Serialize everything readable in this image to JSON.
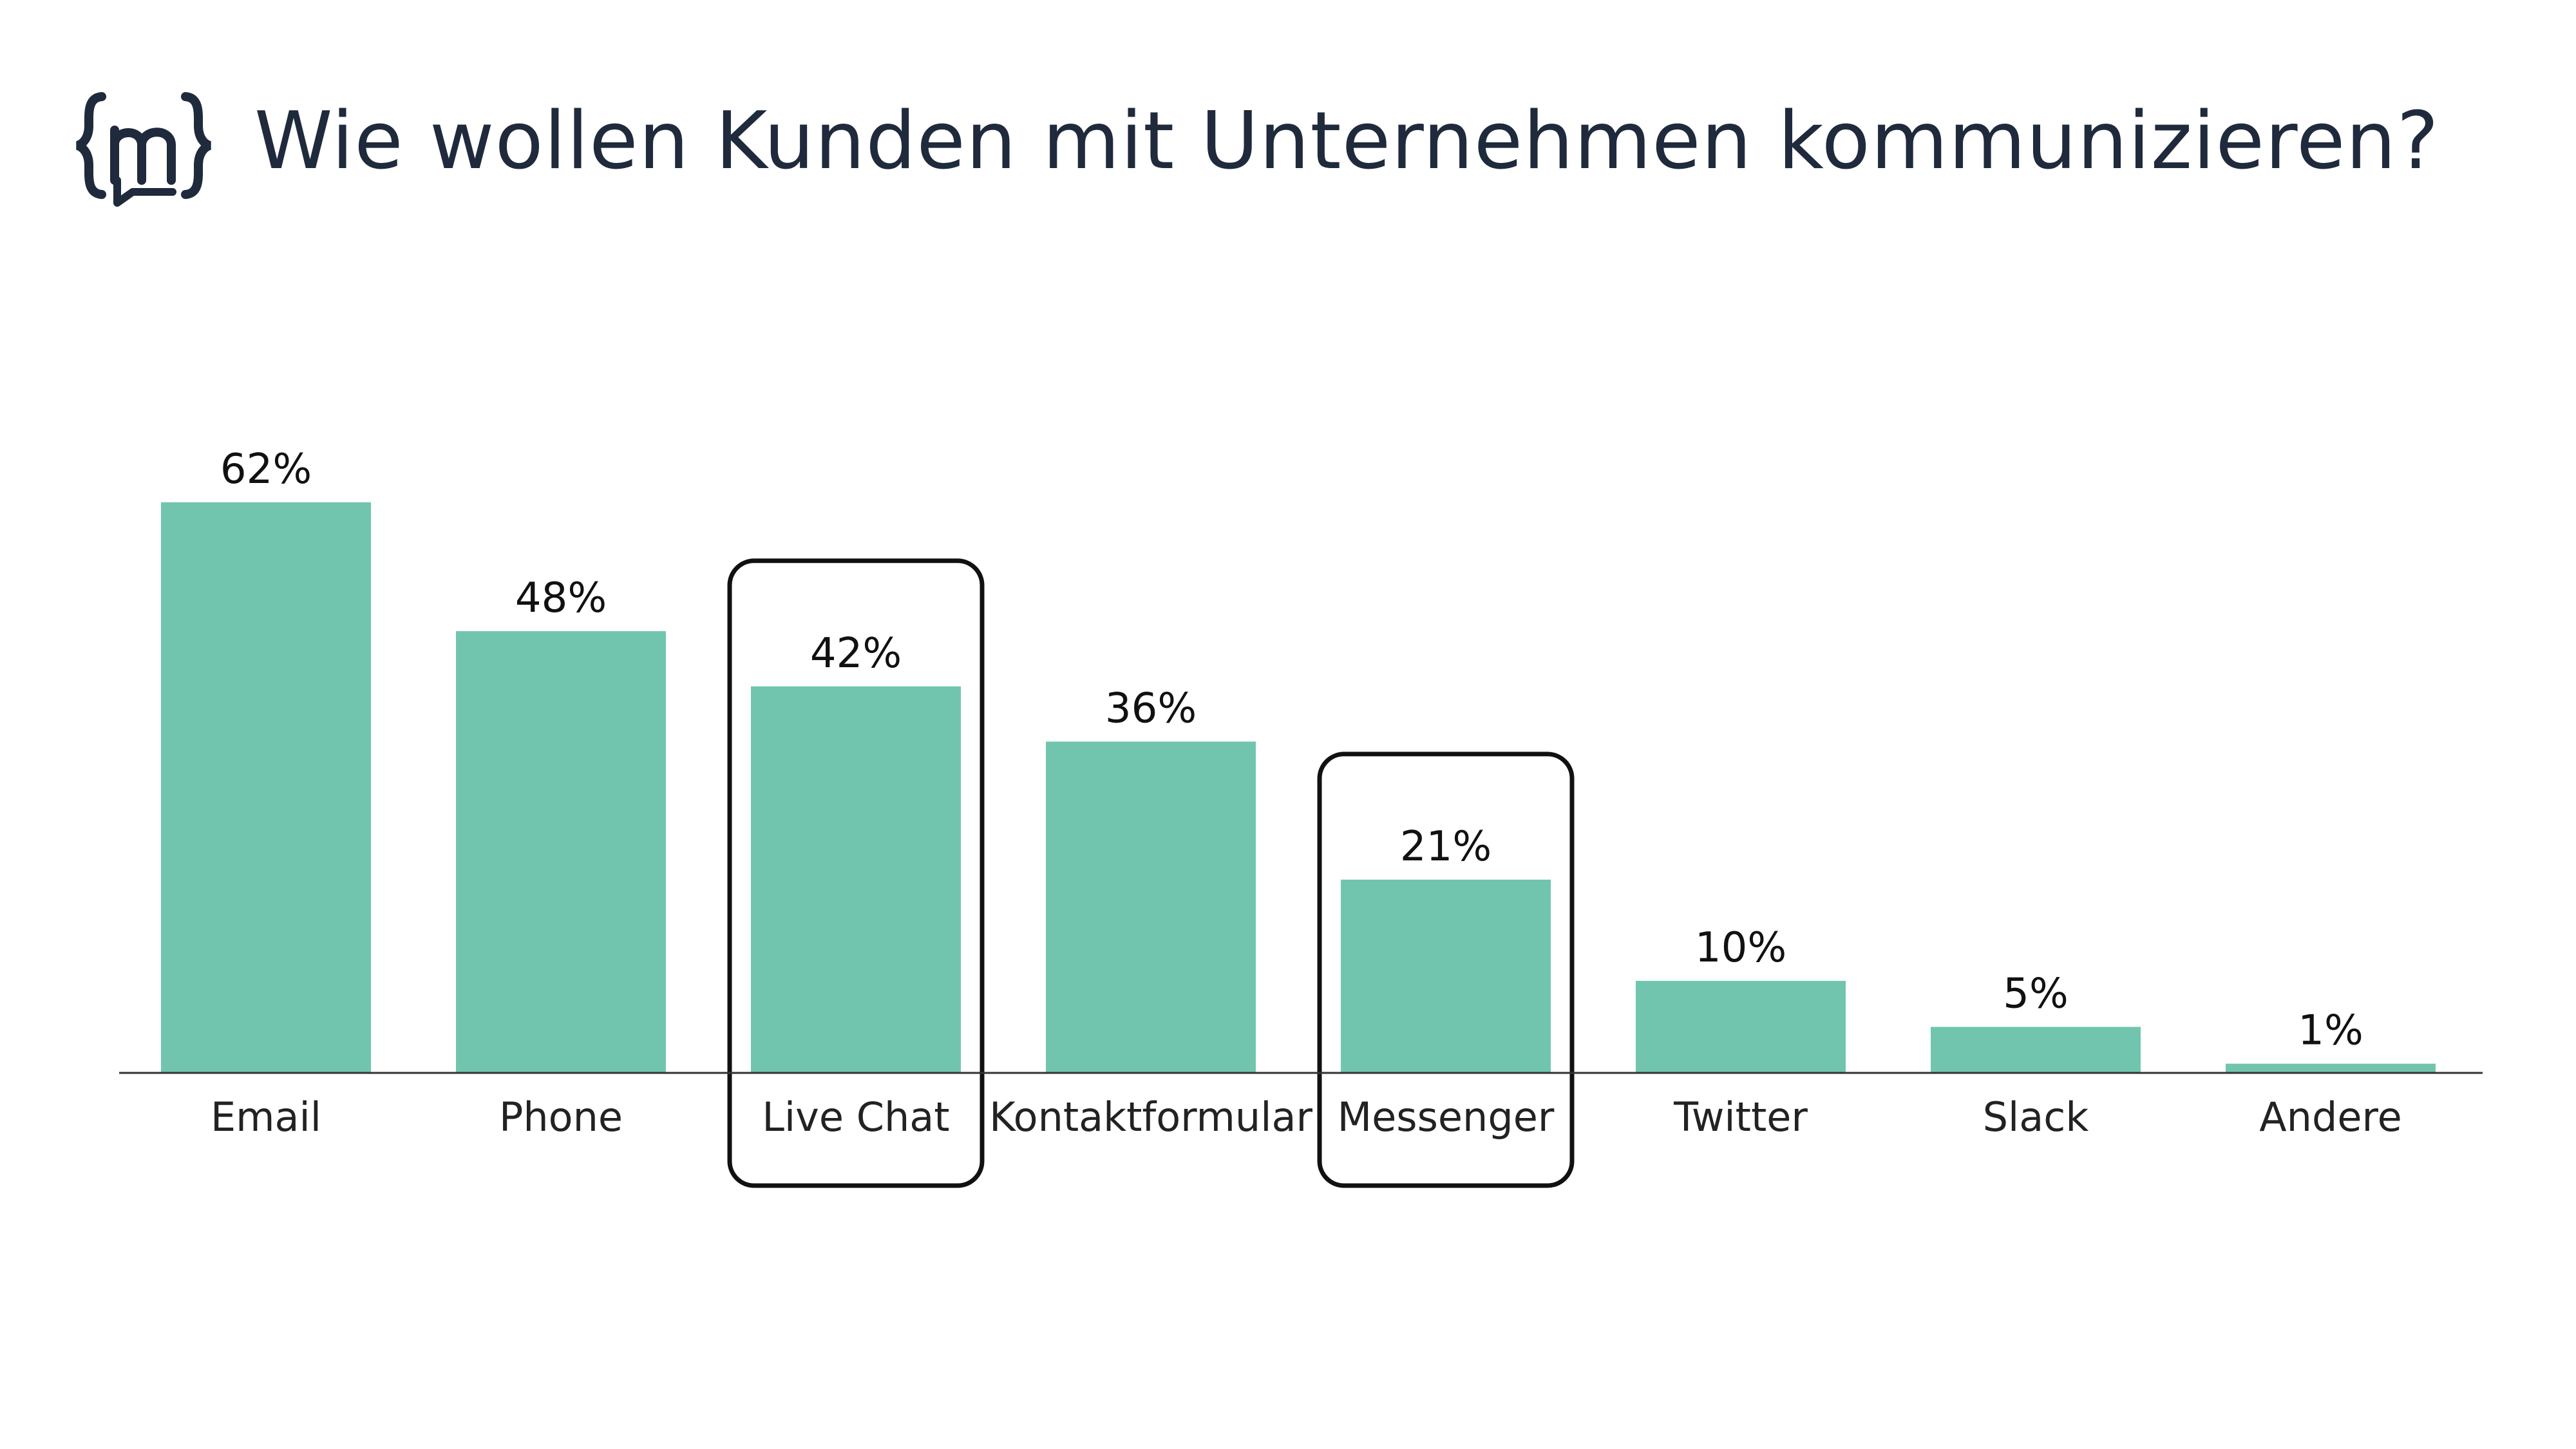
{
  "header": {
    "logo_icon": "curly-brace-m-speech-bubble-icon",
    "title": "Wie wollen Kunden mit Unternehmen kommunizieren?"
  },
  "colors": {
    "bar": "#71c5ae",
    "title": "#1f2a3c",
    "highlight_border": "#111111"
  },
  "chart_data": {
    "type": "bar",
    "title": "Wie wollen Kunden mit Unternehmen kommunizieren?",
    "xlabel": "",
    "ylabel": "",
    "unit": "%",
    "ylim": [
      0,
      62
    ],
    "grid": false,
    "legend": "none",
    "categories": [
      "Email",
      "Phone",
      "Live Chat",
      "Kontaktformular",
      "Messenger",
      "Twitter",
      "Slack",
      "Andere"
    ],
    "values": [
      62,
      48,
      42,
      36,
      21,
      10,
      5,
      1
    ],
    "value_labels": [
      "62%",
      "48%",
      "42%",
      "36%",
      "21%",
      "10%",
      "5%",
      "1%"
    ],
    "highlighted": [
      "Live Chat",
      "Messenger"
    ]
  }
}
